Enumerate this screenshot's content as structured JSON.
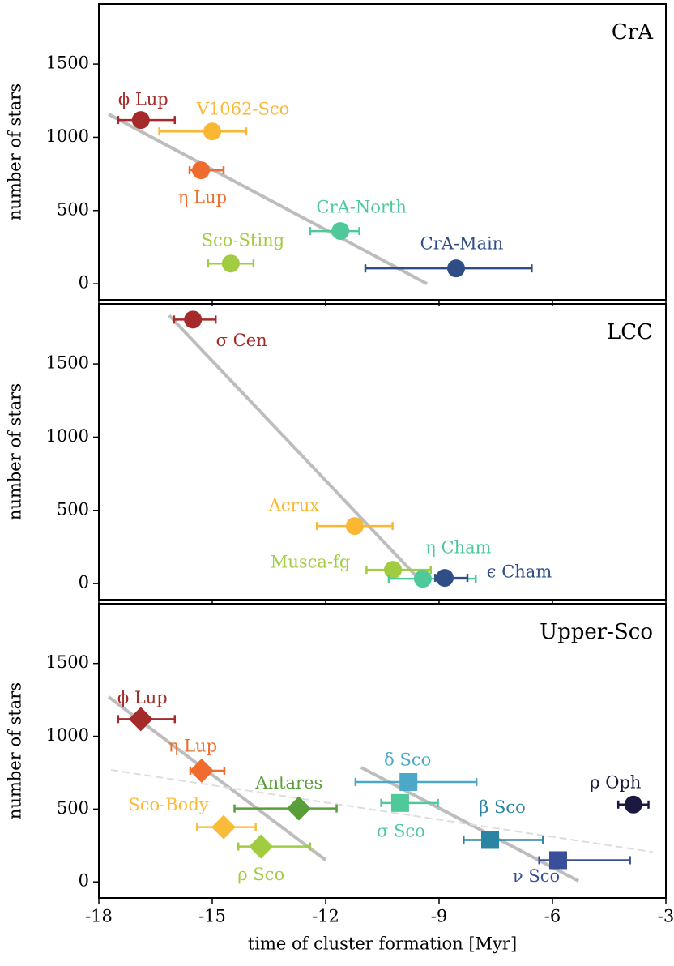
{
  "chart_data": [
    {
      "type": "scatter",
      "title": "CrA",
      "ylabel": "number of stars",
      "xlim": [
        -18,
        -3
      ],
      "xticks": [
        -18,
        -15,
        -12,
        -9,
        -6,
        -3
      ],
      "ylim": [
        -110,
        1910
      ],
      "yticks": [
        0,
        500,
        1000,
        1500
      ],
      "series": [
        {
          "name": "ϕ Lup",
          "color": "#a52a2a",
          "marker": "circle",
          "x": [
            -16.89
          ],
          "values": [
            1118
          ],
          "xerr_minus": [
            0.6
          ],
          "xerr_plus": [
            0.9
          ]
        },
        {
          "name": "V1062-Sco",
          "color": "#f9b733",
          "marker": "circle",
          "x": [
            -15.0
          ],
          "values": [
            1040
          ],
          "xerr_minus": [
            1.4
          ],
          "xerr_plus": [
            0.9
          ]
        },
        {
          "name": "η Lup",
          "color": "#ef6c2e",
          "marker": "circle",
          "x": [
            -15.3
          ],
          "values": [
            775
          ],
          "xerr_minus": [
            0.3
          ],
          "xerr_plus": [
            0.6
          ]
        },
        {
          "name": "CrA-North",
          "color": "#4fc99a",
          "marker": "circle",
          "x": [
            -11.61
          ],
          "values": [
            360
          ],
          "xerr_minus": [
            0.8
          ],
          "xerr_plus": [
            0.5
          ]
        },
        {
          "name": "Sco-Sting",
          "color": "#a1cc42",
          "marker": "circle",
          "x": [
            -14.51
          ],
          "values": [
            138
          ],
          "xerr_minus": [
            0.6
          ],
          "xerr_plus": [
            0.6
          ]
        },
        {
          "name": "CrA-Main",
          "color": "#2e4e85",
          "marker": "circle",
          "x": [
            -8.55
          ],
          "values": [
            105
          ],
          "xerr_minus": [
            2.4
          ],
          "xerr_plus": [
            2.0
          ]
        }
      ],
      "lines": [
        {
          "color": "#bdbdbd",
          "style": "solid",
          "x": [
            -17.74,
            -9.32
          ],
          "values": [
            1157,
            0
          ]
        }
      ]
    },
    {
      "type": "scatter",
      "title": "LCC",
      "ylabel": "number of stars",
      "xlim": [
        -18,
        -3
      ],
      "xticks": [
        -18,
        -15,
        -12,
        -9,
        -6,
        -3
      ],
      "ylim": [
        -110,
        1910
      ],
      "yticks": [
        0,
        500,
        1000,
        1500
      ],
      "series": [
        {
          "name": "σ Cen",
          "color": "#a52a2a",
          "marker": "circle",
          "x": [
            -15.51
          ],
          "values": [
            1803
          ],
          "xerr_minus": [
            0.5
          ],
          "xerr_plus": [
            0.6
          ]
        },
        {
          "name": "Acrux",
          "color": "#fbb731",
          "marker": "circle",
          "x": [
            -11.23
          ],
          "values": [
            393
          ],
          "xerr_minus": [
            1.0
          ],
          "xerr_plus": [
            1.0
          ]
        },
        {
          "name": "Musca-fg",
          "color": "#a1cc42",
          "marker": "circle",
          "x": [
            -10.22
          ],
          "values": [
            94
          ],
          "xerr_minus": [
            0.7
          ],
          "xerr_plus": [
            1.0
          ]
        },
        {
          "name": "η Cham",
          "color": "#4fc99a",
          "marker": "circle",
          "x": [
            -9.43
          ],
          "values": [
            33
          ],
          "xerr_minus": [
            0.9
          ],
          "xerr_plus": [
            1.4
          ]
        },
        {
          "name": "ϵ Cham",
          "color": "#2e4e85",
          "marker": "circle",
          "x": [
            -8.85
          ],
          "values": [
            39
          ],
          "xerr_minus": [
            0.25
          ],
          "xerr_plus": [
            0.6
          ]
        }
      ],
      "lines": [
        {
          "color": "#bdbdbd",
          "style": "solid",
          "x": [
            -16.14,
            -9.62
          ],
          "values": [
            1831,
            55
          ]
        }
      ]
    },
    {
      "type": "scatter",
      "title": "Upper-Sco",
      "ylabel": "number of stars",
      "xlabel": "time of cluster formation [Myr]",
      "xlim": [
        -18,
        -3
      ],
      "xticks": [
        -18,
        -15,
        -12,
        -9,
        -6,
        -3
      ],
      "ylim": [
        -110,
        1910
      ],
      "yticks": [
        0,
        500,
        1000,
        1500
      ],
      "series": [
        {
          "name": "ϕ Lup",
          "color": "#a52a2a",
          "marker": "diamond",
          "x": [
            -16.89
          ],
          "values": [
            1118
          ],
          "xerr_minus": [
            0.6
          ],
          "xerr_plus": [
            0.9
          ]
        },
        {
          "name": "η Lup",
          "color": "#ef6c2e",
          "marker": "diamond",
          "x": [
            -15.28
          ],
          "values": [
            764
          ],
          "xerr_minus": [
            0.3
          ],
          "xerr_plus": [
            0.6
          ]
        },
        {
          "name": "Sco-Body",
          "color": "#fbbb3a",
          "marker": "diamond",
          "x": [
            -14.7
          ],
          "values": [
            376
          ],
          "xerr_minus": [
            0.7
          ],
          "xerr_plus": [
            0.85
          ]
        },
        {
          "name": "ρ Sco",
          "color": "#a1cc42",
          "marker": "diamond",
          "x": [
            -13.71
          ],
          "values": [
            243
          ],
          "xerr_minus": [
            0.6
          ],
          "xerr_plus": [
            1.3
          ]
        },
        {
          "name": "Antares",
          "color": "#5a9e3a",
          "marker": "diamond",
          "x": [
            -12.71
          ],
          "values": [
            504
          ],
          "xerr_minus": [
            1.7
          ],
          "xerr_plus": [
            1.0
          ]
        },
        {
          "name": "δ Sco",
          "color": "#4ba8c9",
          "marker": "square",
          "x": [
            -9.81
          ],
          "values": [
            686
          ],
          "xerr_minus": [
            1.4
          ],
          "xerr_plus": [
            1.8
          ]
        },
        {
          "name": "σ Sco",
          "color": "#4fc99a",
          "marker": "square",
          "x": [
            -10.03
          ],
          "values": [
            542
          ],
          "xerr_minus": [
            0.5
          ],
          "xerr_plus": [
            1.0
          ]
        },
        {
          "name": "β Sco",
          "color": "#2b84a3",
          "marker": "square",
          "x": [
            -7.65
          ],
          "values": [
            288
          ],
          "xerr_minus": [
            0.7
          ],
          "xerr_plus": [
            1.4
          ]
        },
        {
          "name": "ν Sco",
          "color": "#394f9a",
          "marker": "square",
          "x": [
            -5.85
          ],
          "values": [
            149
          ],
          "xerr_minus": [
            0.5
          ],
          "xerr_plus": [
            1.9
          ]
        },
        {
          "name": "ρ Oph",
          "color": "#1a1a40",
          "marker": "circle",
          "x": [
            -3.86
          ],
          "values": [
            531
          ],
          "xerr_minus": [
            0.4
          ],
          "xerr_plus": [
            0.4
          ]
        }
      ],
      "lines": [
        {
          "color": "#bdbdbd",
          "style": "solid",
          "x": [
            -17.74,
            -12.0
          ],
          "values": [
            1270,
            150
          ]
        },
        {
          "color": "#bdbdbd",
          "style": "solid",
          "x": [
            -11.06,
            -5.31
          ],
          "values": [
            786,
            6
          ]
        },
        {
          "color": "#dddddd",
          "style": "dashed",
          "x": [
            -17.68,
            -3.34
          ],
          "values": [
            769,
            205
          ]
        }
      ]
    }
  ]
}
